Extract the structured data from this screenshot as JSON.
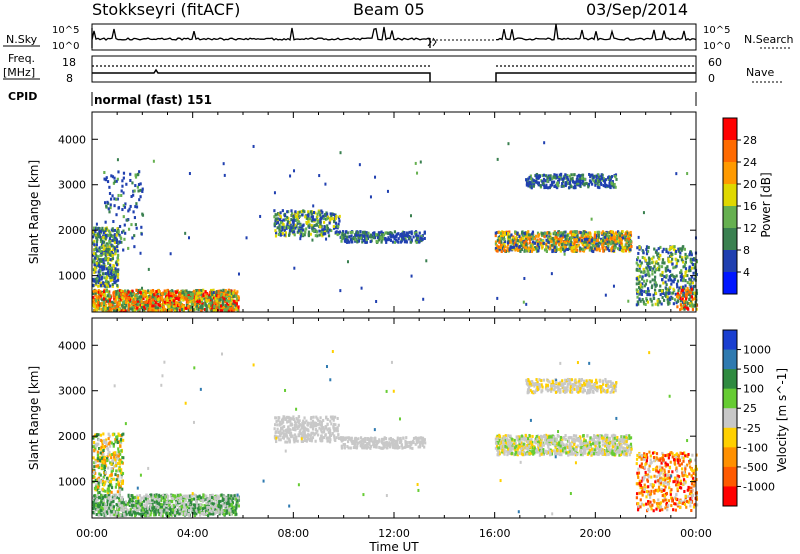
{
  "header": {
    "station": "Stokkseyri (fitACF)",
    "beam": "Beam 05",
    "date": "03/Sep/2014"
  },
  "top_panels": {
    "nsky_label": "N.Sky",
    "nsky_ticks": [
      "10^5",
      "10^0"
    ],
    "nsearch_ticks": [
      "10^5",
      "10^0"
    ],
    "nsearch_label": "N.Search",
    "freq_label_1": "Freq.",
    "freq_label_2": "[MHz]",
    "freq_ticks": [
      "18",
      "8"
    ],
    "nave_ticks": [
      "60",
      "0"
    ],
    "nave_label": "Nave",
    "cpid_label": "CPID",
    "cpid_value": "normal (fast) 151"
  },
  "chart_data": [
    {
      "type": "heatmap",
      "name": "power",
      "ylabel": "Slant Range [km]",
      "xlabel": "",
      "y_ticks": [
        "1000",
        "2000",
        "3000",
        "4000"
      ],
      "ylim": [
        200,
        4600
      ],
      "colorbar_label": "Power [dB]",
      "colorbar_ticks": [
        "4",
        "8",
        "12",
        "16",
        "20",
        "24",
        "28"
      ],
      "colorbar_colors": [
        "#0016ff",
        "#2040b0",
        "#3a8050",
        "#66b050",
        "#e0d800",
        "#ff9a00",
        "#ff6a00",
        "#ff0000"
      ],
      "scatter_regions_approx": [
        {
          "t_start_h": 0.0,
          "t_end_h": 5.8,
          "range_km": [
            300,
            700
          ],
          "level": "high"
        },
        {
          "t_start_h": 0.0,
          "t_end_h": 1.0,
          "range_km": [
            800,
            2000
          ],
          "level": "mid"
        },
        {
          "t_start_h": 7.0,
          "t_end_h": 13.2,
          "range_km": [
            1600,
            2500
          ],
          "level": "low-mid"
        },
        {
          "t_start_h": 16.0,
          "t_end_h": 21.5,
          "range_km": [
            1500,
            2200
          ],
          "level": "mid-high"
        },
        {
          "t_start_h": 17.0,
          "t_end_h": 20.5,
          "range_km": [
            2900,
            3300
          ],
          "level": "low"
        },
        {
          "t_start_h": 21.5,
          "t_end_h": 24.0,
          "range_km": [
            400,
            2000
          ],
          "level": "mid"
        }
      ],
      "data_gap_h": [
        13.5,
        16.0
      ]
    },
    {
      "type": "heatmap",
      "name": "velocity",
      "ylabel": "Slant Range [km]",
      "xlabel": "Time UT",
      "x_ticks": [
        "00:00",
        "04:00",
        "08:00",
        "12:00",
        "16:00",
        "20:00",
        "00:00"
      ],
      "y_ticks": [
        "1000",
        "2000",
        "3000",
        "4000"
      ],
      "ylim": [
        200,
        4600
      ],
      "colorbar_label": "Velocity [m s^-1]",
      "colorbar_ticks": [
        "1000",
        "500",
        "100",
        "25",
        "-25",
        "-100",
        "-500",
        "-1000"
      ],
      "colorbar_colors": [
        "#1a3fd0",
        "#2f7ab0",
        "#2f8a40",
        "#66cc33",
        "#c8c8c8",
        "#ffd000",
        "#ff9000",
        "#ff5a00",
        "#ff0000"
      ]
    }
  ],
  "colors": {
    "ground_scatter": "#c8c8c8",
    "axes": "#000000"
  }
}
